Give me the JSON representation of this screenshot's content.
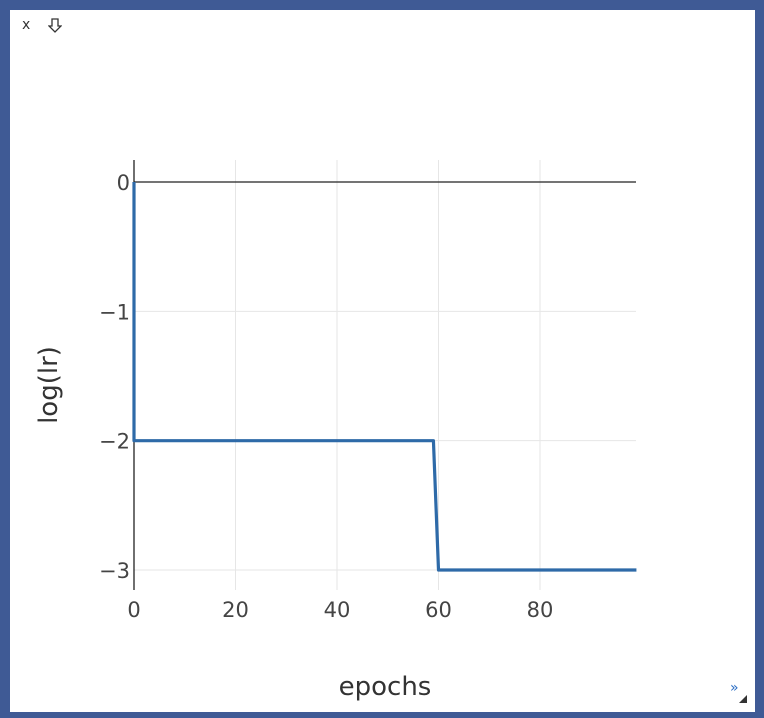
{
  "toolbar": {
    "close_label": "x",
    "download_icon": "download-arrow-icon",
    "expand_label": "»",
    "resize_icon": "resize-grip-icon"
  },
  "colors": {
    "background_frame": "#3f5a95",
    "panel": "#ffffff",
    "series_line": "#2e6aa8",
    "grid": "#e6e6e6",
    "axis": "#222222"
  },
  "chart_data": {
    "type": "line",
    "title": "",
    "xlabel": "epochs",
    "ylabel": "log(lr)",
    "xlim": [
      0,
      99
    ],
    "ylim": [
      -3.2,
      0.2
    ],
    "x_ticks": [
      0,
      20,
      40,
      60,
      80
    ],
    "y_ticks": [
      0,
      -1,
      -2,
      -3
    ],
    "x_tick_labels": [
      "0",
      "20",
      "40",
      "60",
      "80"
    ],
    "y_tick_labels": [
      "0",
      "−1",
      "−2",
      "−3"
    ],
    "grid": true,
    "legend": "none",
    "series": [
      {
        "x": [
          0,
          0,
          59,
          60,
          99
        ],
        "y": [
          0,
          -2,
          -2,
          -3,
          -3
        ]
      }
    ]
  }
}
